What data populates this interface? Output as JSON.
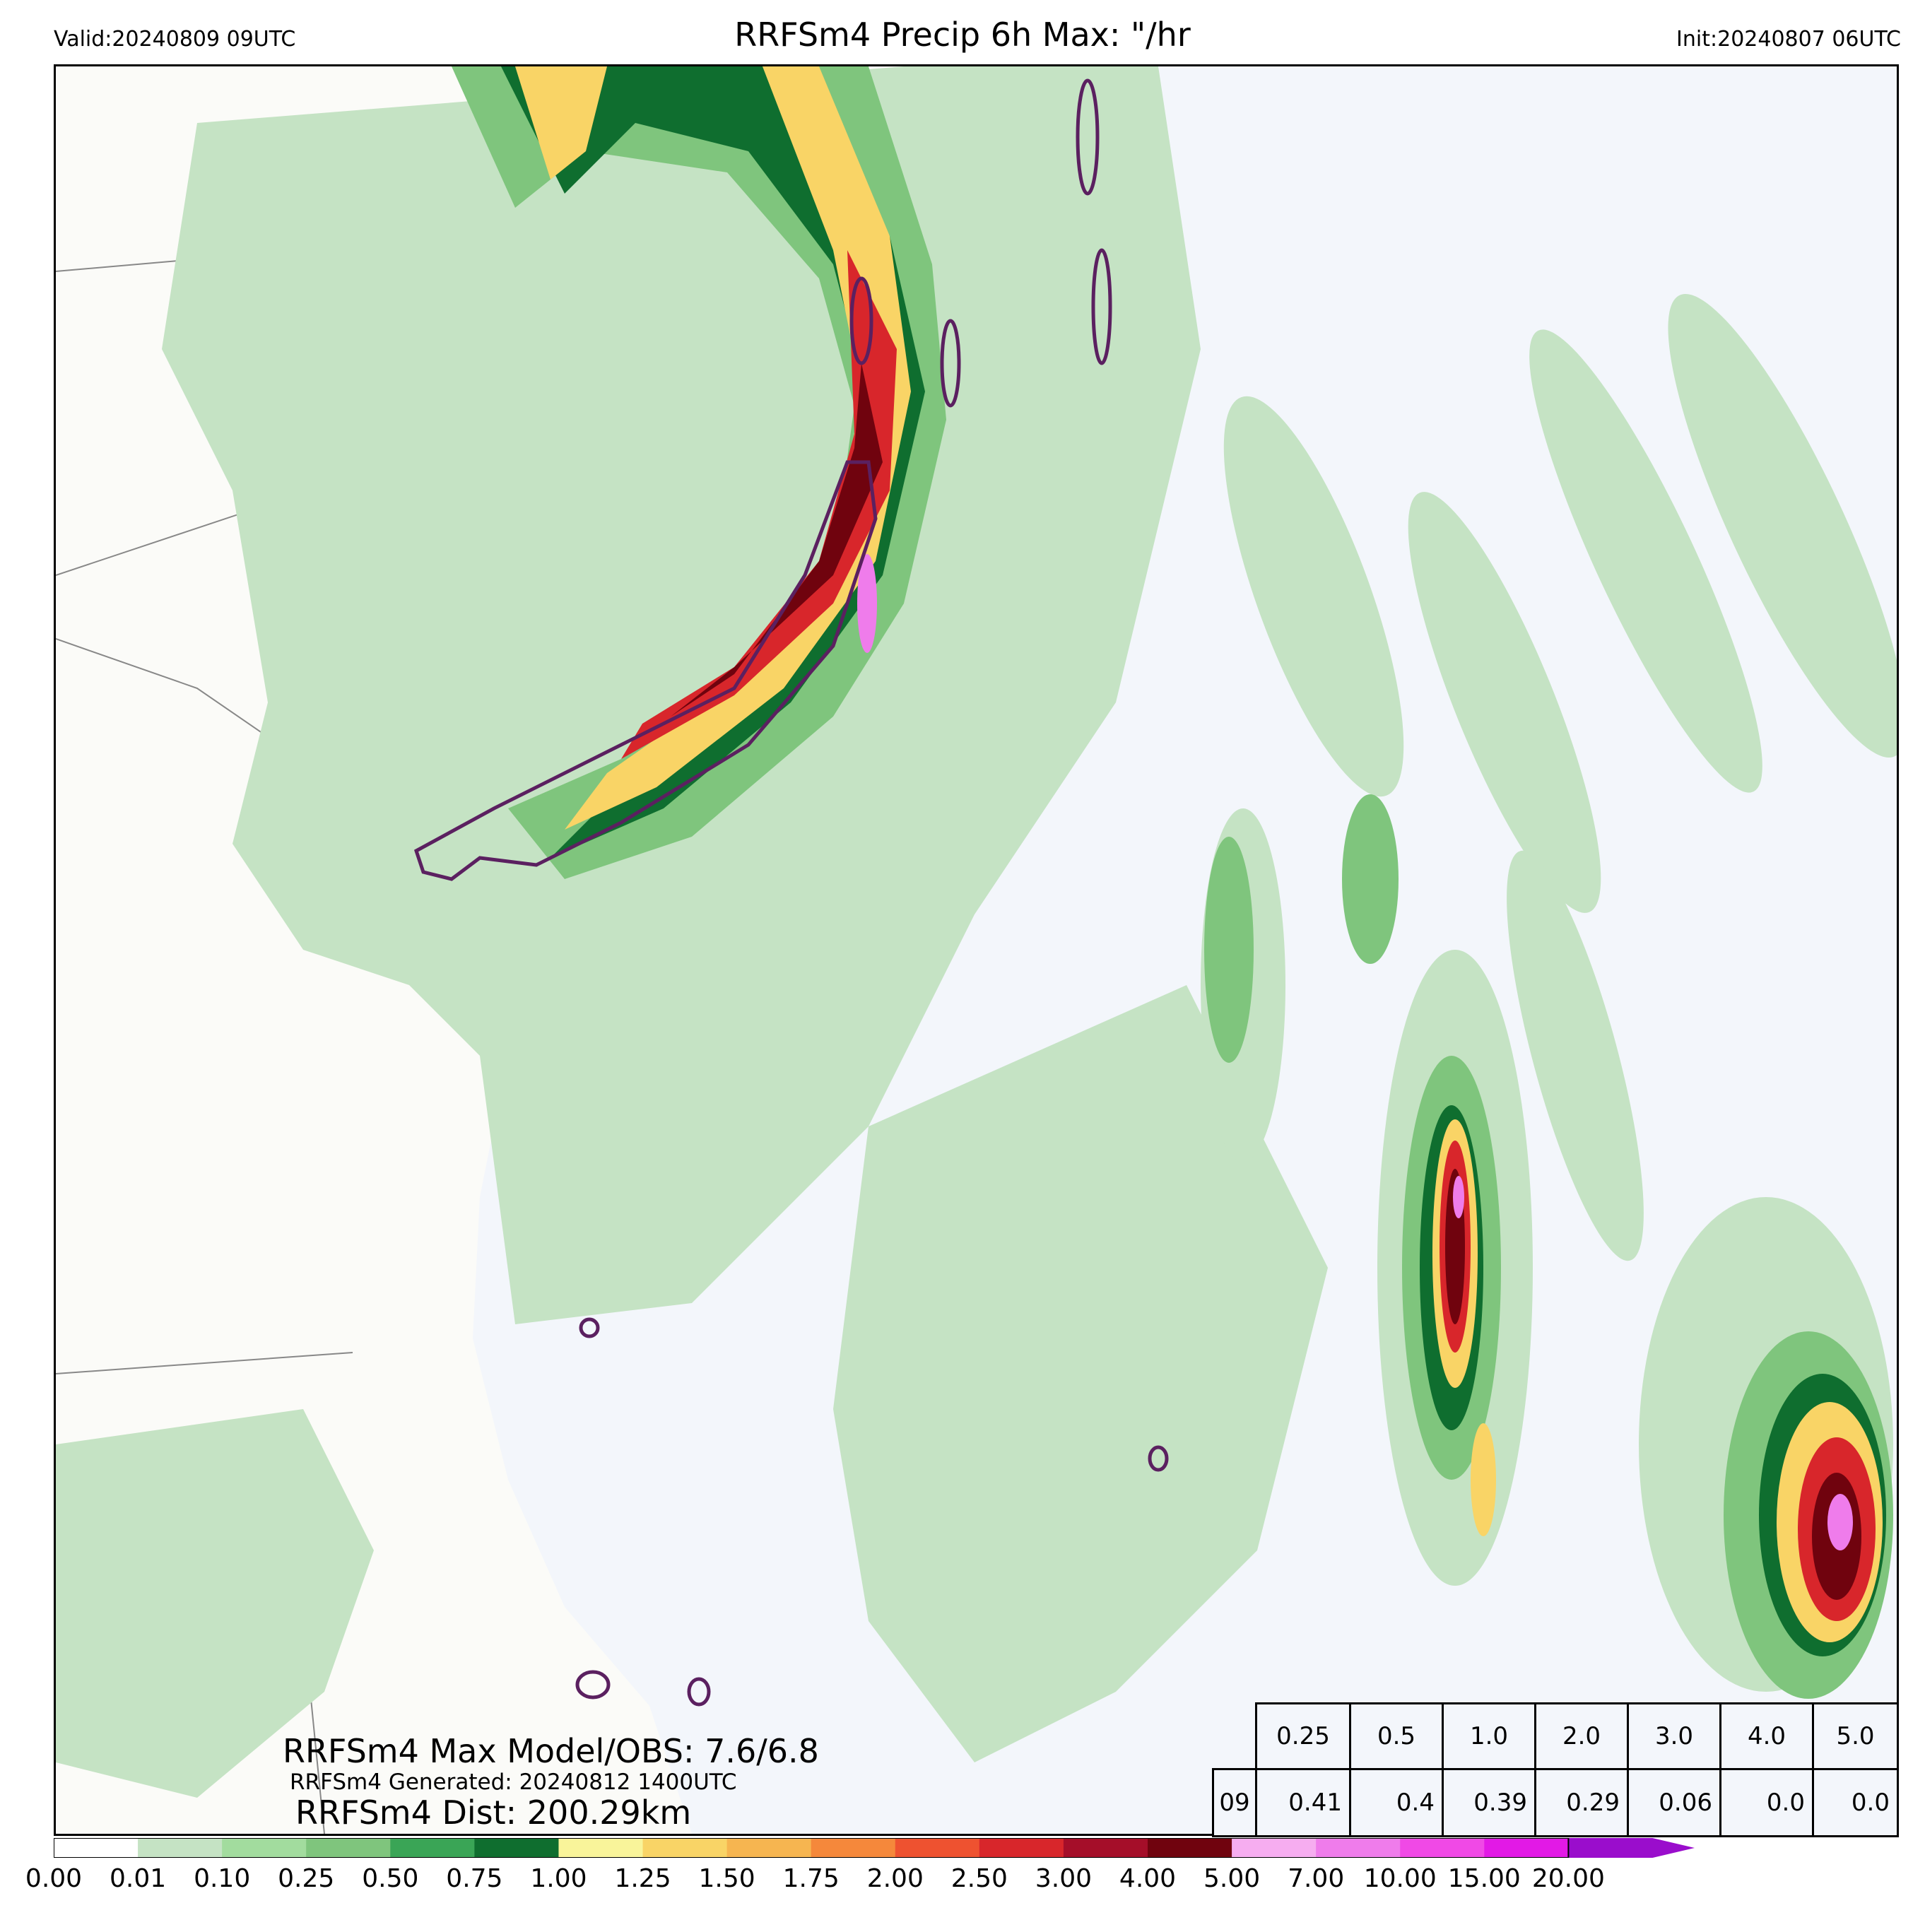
{
  "header": {
    "valid": "Valid:20240809 09UTC",
    "title": "RRFSm4 Precip 6h Max: \"/hr",
    "init": "Init:20240807 06UTC"
  },
  "annotations": {
    "max_model_obs": "RRFSm4 Max Model/OBS: 7.6/6.8",
    "generated": "RRFSm4 Generated: 20240812 1400UTC",
    "distance": "RRFSm4 Dist: 200.29km"
  },
  "stats_table": {
    "thresholds": [
      "0.25",
      "0.5",
      "1.0",
      "2.0",
      "3.0",
      "4.0",
      "5.0"
    ],
    "row_label": "09",
    "values": [
      "0.41",
      "0.4",
      "0.39",
      "0.29",
      "0.06",
      "0.0",
      "0.0"
    ]
  },
  "colorbar": {
    "ticks": [
      "0.00",
      "0.01",
      "0.10",
      "0.25",
      "0.50",
      "0.75",
      "1.00",
      "1.25",
      "1.50",
      "1.75",
      "2.00",
      "2.50",
      "3.00",
      "4.00",
      "5.00",
      "7.00",
      "10.00",
      "15.00",
      "20.00"
    ],
    "colors": [
      "#ffffff",
      "#c5e3c4",
      "#a2dc9e",
      "#7fc57d",
      "#3aa556",
      "#0f6e2f",
      "#f9f49a",
      "#f9d466",
      "#f6b550",
      "#f5883b",
      "#ee5230",
      "#d8262b",
      "#a50e29",
      "#70030e",
      "#f6adf0",
      "#ef7ceb",
      "#f049e6",
      "#e219e6",
      "#9a0dcc"
    ],
    "extend": "max"
  },
  "map": {
    "land_color": "#fbfbf8",
    "ocean_color": "#f3f6fb",
    "obs_contour_color": "#5b2060",
    "region": "Southeast US coast and western Atlantic"
  }
}
